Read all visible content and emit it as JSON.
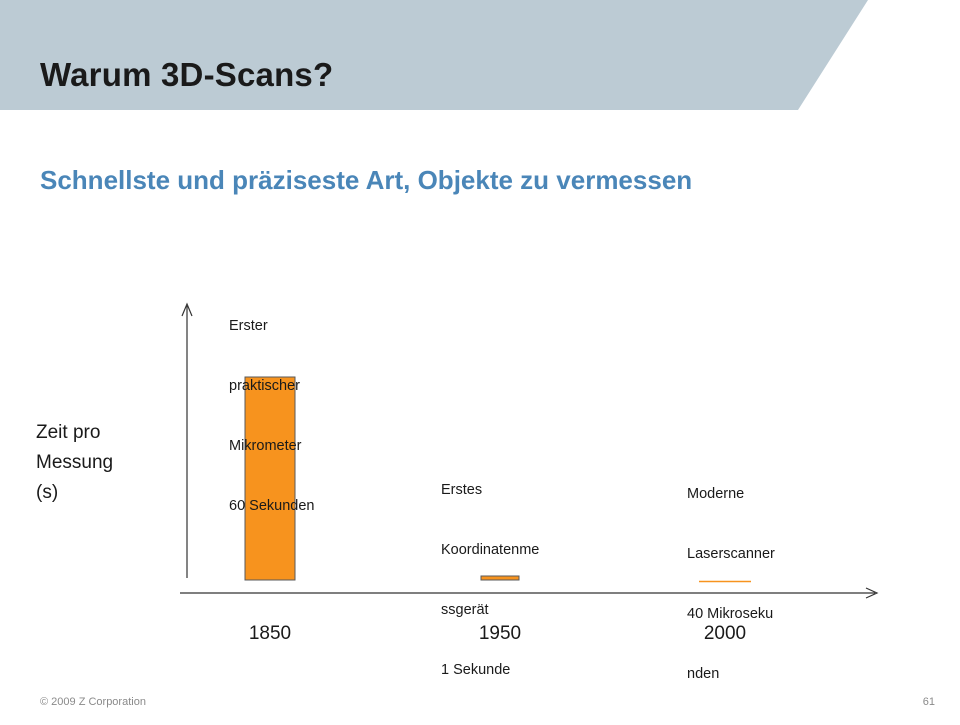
{
  "slide": {
    "title": "Warum 3D-Scans?",
    "subtitle": "Schnellste und präziseste Art, Objekte zu vermessen",
    "header_color": "#bccbd4",
    "footer": {
      "copyright": "© 2009 Z Corporation",
      "page_number": "61"
    }
  },
  "chart_data": {
    "type": "bar",
    "title": "",
    "xlabel": "",
    "ylabel": "Zeit pro Messung (s)",
    "ylabel_lines": [
      "Zeit pro",
      "Messung",
      "(s)"
    ],
    "categories": [
      "1850",
      "1950",
      "2000"
    ],
    "values": [
      60,
      1,
      4e-05
    ],
    "ylim": [
      0,
      60
    ],
    "bar_color": "#f7931e",
    "grid": false,
    "annotations": [
      {
        "category": "1850",
        "lines": [
          "Erster",
          "praktischer",
          "Mikrometer",
          "60 Sekunden"
        ]
      },
      {
        "category": "1950",
        "lines": [
          "Erstes",
          "Koordinatenme",
          "ssgerät",
          "1 Sekunde"
        ]
      },
      {
        "category": "2000",
        "lines": [
          "Moderne",
          "Laserscanner",
          "40 Mikroseku",
          "nden"
        ]
      }
    ]
  }
}
